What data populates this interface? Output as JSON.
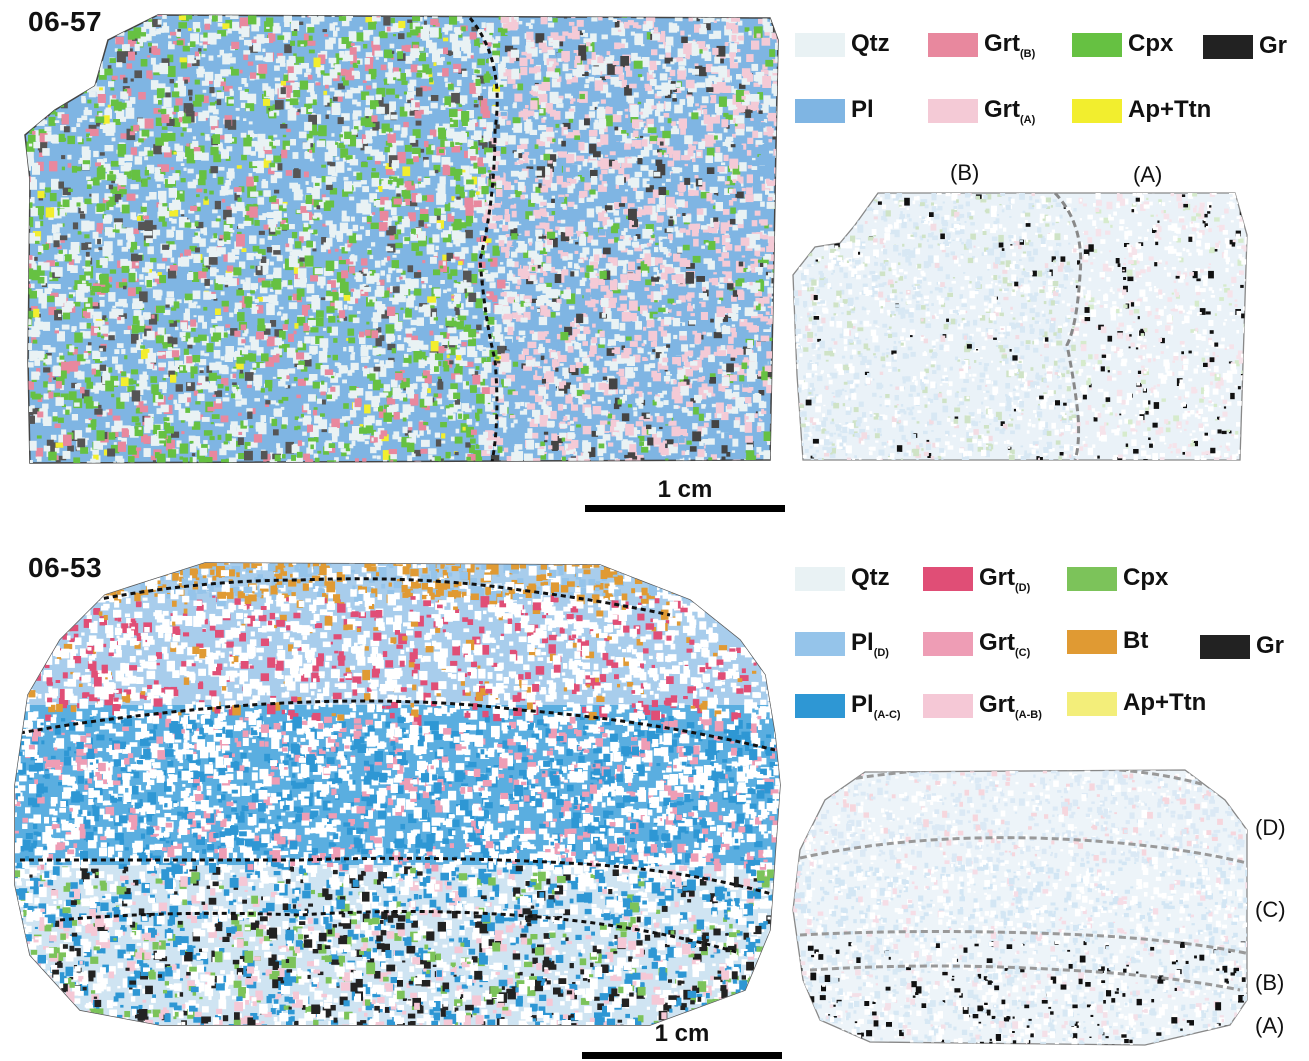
{
  "colors": {
    "qtz": "#e9f2f4",
    "pl": "#7fb5e3",
    "grtB": "#e8889e",
    "grtA": "#f4cad6",
    "cpx": "#66c142",
    "apttn": "#f2ee2e",
    "gr": "#222222",
    "grtD": "#e04e76",
    "grtC": "#ee9db5",
    "grtAB": "#f5c8d6",
    "plD": "#95c4ea",
    "plAC": "#2e97d4",
    "bt": "#e09a33",
    "cpx2": "#7cc35a",
    "apttn2": "#f3ee7a"
  },
  "panel1": {
    "sample_label": "06-57",
    "scale_label": "1 cm",
    "legend": [
      {
        "base": "Qtz",
        "sub": "",
        "color_key": "qtz"
      },
      {
        "base": "Grt",
        "sub": "(B)",
        "color_key": "grtB"
      },
      {
        "base": "Cpx",
        "sub": "",
        "color_key": "cpx"
      },
      {
        "base": "Gr",
        "sub": "",
        "color_key": "gr"
      },
      {
        "base": "Pl",
        "sub": "",
        "color_key": "pl"
      },
      {
        "base": "Grt",
        "sub": "(A)",
        "color_key": "grtA"
      },
      {
        "base": "Ap+Ttn",
        "sub": "",
        "color_key": "apttn"
      }
    ],
    "zone_labels": [
      "(B)",
      "(A)"
    ]
  },
  "panel2": {
    "sample_label": "06-53",
    "scale_label": "1 cm",
    "legend": [
      {
        "base": "Qtz",
        "sub": "",
        "color_key": "qtz"
      },
      {
        "base": "Grt",
        "sub": "(D)",
        "color_key": "grtD"
      },
      {
        "base": "Cpx",
        "sub": "",
        "color_key": "cpx2"
      },
      {
        "base": "Pl",
        "sub": "(D)",
        "color_key": "plD"
      },
      {
        "base": "Grt",
        "sub": "(C)",
        "color_key": "grtC"
      },
      {
        "base": "Bt",
        "sub": "",
        "color_key": "bt"
      },
      {
        "base": "Gr",
        "sub": "",
        "color_key": "gr"
      },
      {
        "base": "Pl",
        "sub": "(A-C)",
        "color_key": "plAC"
      },
      {
        "base": "Grt",
        "sub": "(A-B)",
        "color_key": "grtAB"
      },
      {
        "base": "Ap+Ttn",
        "sub": "",
        "color_key": "apttn2"
      }
    ],
    "zone_labels": [
      "(D)",
      "(C)",
      "(B)",
      "(A)"
    ]
  }
}
